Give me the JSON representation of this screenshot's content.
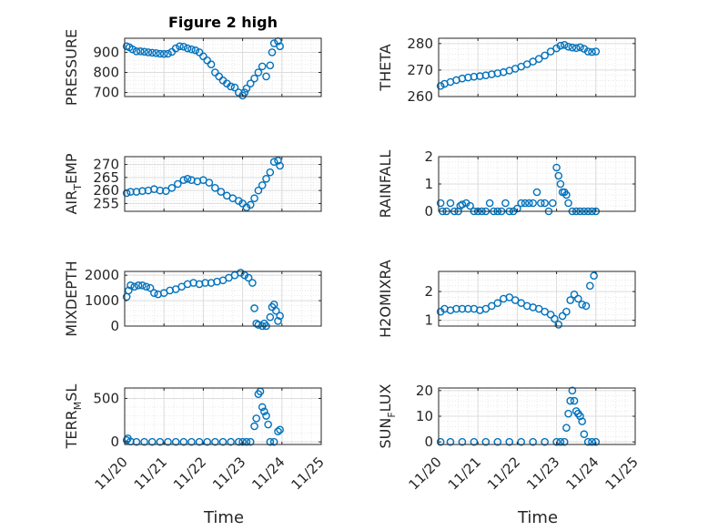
{
  "figure": {
    "title": "Figure 2 high",
    "series_color": "#0072BD"
  },
  "chart_data": [
    {
      "type": "scatter",
      "title": "Figure 2 high",
      "ylabel": "PRESSURE",
      "xlabel": "",
      "xlim": [
        0,
        5
      ],
      "ylim": [
        680,
        970
      ],
      "yticks": [
        700,
        800,
        900
      ],
      "xticks": [
        0,
        1,
        2,
        3,
        4,
        5
      ],
      "xticklabels": [
        "11/20",
        "11/21",
        "11/22",
        "11/23",
        "11/24",
        "11/25"
      ],
      "show_xticklabels": false,
      "grid": true,
      "x": [
        0.05,
        0.12,
        0.2,
        0.3,
        0.4,
        0.5,
        0.6,
        0.7,
        0.8,
        0.9,
        1.0,
        1.1,
        1.2,
        1.3,
        1.4,
        1.5,
        1.6,
        1.7,
        1.8,
        1.9,
        2.0,
        2.1,
        2.2,
        2.3,
        2.4,
        2.5,
        2.6,
        2.7,
        2.8,
        2.9,
        3.0,
        3.05,
        3.1,
        3.2,
        3.3,
        3.4,
        3.5,
        3.6,
        3.7,
        3.75,
        3.8,
        3.9,
        3.95
      ],
      "y": [
        930,
        925,
        915,
        905,
        905,
        903,
        900,
        898,
        896,
        893,
        892,
        893,
        902,
        920,
        930,
        928,
        920,
        915,
        910,
        900,
        880,
        860,
        840,
        800,
        780,
        760,
        745,
        730,
        725,
        700,
        685,
        700,
        720,
        745,
        770,
        800,
        830,
        780,
        835,
        900,
        945,
        955,
        930
      ]
    },
    {
      "type": "scatter",
      "title": "",
      "ylabel": "THETA",
      "xlabel": "",
      "xlim": [
        0,
        5
      ],
      "ylim": [
        260,
        282
      ],
      "yticks": [
        260,
        270,
        280
      ],
      "xticks": [
        0,
        1,
        2,
        3,
        4,
        5
      ],
      "xticklabels": [
        "11/20",
        "11/21",
        "11/22",
        "11/23",
        "11/24",
        "11/25"
      ],
      "show_xticklabels": false,
      "grid": true,
      "x": [
        0.05,
        0.15,
        0.3,
        0.45,
        0.6,
        0.75,
        0.9,
        1.05,
        1.2,
        1.35,
        1.5,
        1.65,
        1.8,
        1.95,
        2.1,
        2.25,
        2.4,
        2.55,
        2.7,
        2.85,
        3.0,
        3.1,
        3.2,
        3.3,
        3.4,
        3.5,
        3.6,
        3.7,
        3.8,
        3.9,
        4.0
      ],
      "y": [
        264,
        264.8,
        265.5,
        266.2,
        266.8,
        267.2,
        267.5,
        267.7,
        268,
        268.4,
        268.8,
        269.2,
        269.8,
        270.5,
        271.3,
        272.2,
        273.2,
        274.2,
        275.5,
        277,
        278.2,
        279.2,
        279.5,
        278.8,
        278.5,
        278.3,
        278.6,
        278,
        277,
        276.8,
        277
      ]
    },
    {
      "type": "scatter",
      "title": "",
      "ylabel": "AIR_TEMP",
      "xlabel": "",
      "xlim": [
        0,
        5
      ],
      "ylim": [
        252,
        273
      ],
      "yticks": [
        255,
        260,
        265,
        270
      ],
      "xticks": [
        0,
        1,
        2,
        3,
        4,
        5
      ],
      "xticklabels": [
        "11/20",
        "11/21",
        "11/22",
        "11/23",
        "11/24",
        "11/25"
      ],
      "show_xticklabels": false,
      "grid": true,
      "x": [
        0.05,
        0.15,
        0.3,
        0.45,
        0.6,
        0.75,
        0.9,
        1.05,
        1.2,
        1.35,
        1.5,
        1.6,
        1.7,
        1.85,
        2.0,
        2.15,
        2.3,
        2.45,
        2.6,
        2.75,
        2.9,
        3.0,
        3.1,
        3.2,
        3.3,
        3.4,
        3.5,
        3.6,
        3.7,
        3.8,
        3.9,
        3.95
      ],
      "y": [
        259,
        259.5,
        259.5,
        259.8,
        260,
        260.5,
        260,
        259.8,
        261,
        262.5,
        264,
        264.5,
        264,
        263.5,
        264,
        263,
        261,
        259.5,
        258,
        257,
        256,
        255,
        253.5,
        254.5,
        257,
        260,
        262,
        264.5,
        267,
        271,
        271.5,
        269.5
      ]
    },
    {
      "type": "scatter",
      "title": "",
      "ylabel": "RAINFALL",
      "xlabel": "",
      "xlim": [
        0,
        5
      ],
      "ylim": [
        0,
        2
      ],
      "yticks": [
        0,
        1,
        2
      ],
      "xticks": [
        0,
        1,
        2,
        3,
        4,
        5
      ],
      "xticklabels": [
        "11/20",
        "11/21",
        "11/22",
        "11/23",
        "11/24",
        "11/25"
      ],
      "show_xticklabels": false,
      "grid": true,
      "x": [
        0.05,
        0.1,
        0.2,
        0.3,
        0.4,
        0.5,
        0.55,
        0.6,
        0.7,
        0.8,
        0.9,
        1.0,
        1.1,
        1.2,
        1.3,
        1.4,
        1.5,
        1.6,
        1.7,
        1.8,
        1.9,
        2.0,
        2.1,
        2.2,
        2.3,
        2.4,
        2.5,
        2.6,
        2.7,
        2.8,
        2.9,
        3.0,
        3.05,
        3.1,
        3.15,
        3.2,
        3.25,
        3.3,
        3.4,
        3.5,
        3.6,
        3.7,
        3.8,
        3.9,
        4.0
      ],
      "y": [
        0.3,
        0,
        0,
        0.3,
        0,
        0,
        0.2,
        0.25,
        0.3,
        0.2,
        0,
        0,
        0,
        0,
        0.3,
        0,
        0,
        0,
        0.3,
        0,
        0,
        0.1,
        0.3,
        0.3,
        0.3,
        0.3,
        0.7,
        0.3,
        0.3,
        0,
        0.3,
        1.6,
        1.3,
        1.0,
        0.7,
        0.7,
        0.6,
        0.3,
        0,
        0,
        0,
        0,
        0,
        0,
        0
      ]
    },
    {
      "type": "scatter",
      "title": "",
      "ylabel": "MIXDEPTH",
      "xlabel": "",
      "xlim": [
        0,
        5
      ],
      "ylim": [
        0,
        2150
      ],
      "yticks": [
        0,
        1000,
        2000
      ],
      "xticks": [
        0,
        1,
        2,
        3,
        4,
        5
      ],
      "xticklabels": [
        "11/20",
        "11/21",
        "11/22",
        "11/23",
        "11/24",
        "11/25"
      ],
      "show_xticklabels": false,
      "grid": true,
      "x": [
        0.05,
        0.1,
        0.15,
        0.25,
        0.35,
        0.45,
        0.55,
        0.65,
        0.75,
        0.85,
        1.0,
        1.15,
        1.3,
        1.45,
        1.6,
        1.75,
        1.9,
        2.05,
        2.2,
        2.35,
        2.5,
        2.65,
        2.8,
        2.95,
        3.05,
        3.15,
        3.25,
        3.3,
        3.35,
        3.4,
        3.5,
        3.55,
        3.6,
        3.7,
        3.75,
        3.8,
        3.85,
        3.9,
        3.95
      ],
      "y": [
        1150,
        1400,
        1600,
        1550,
        1600,
        1600,
        1550,
        1500,
        1300,
        1250,
        1300,
        1400,
        1450,
        1550,
        1650,
        1700,
        1650,
        1700,
        1700,
        1750,
        1800,
        1900,
        2000,
        2100,
        2000,
        1900,
        1700,
        700,
        100,
        50,
        0,
        100,
        0,
        350,
        750,
        850,
        600,
        200,
        400
      ]
    },
    {
      "type": "scatter",
      "title": "",
      "ylabel": "H2OMIXRA",
      "xlabel": "",
      "xlim": [
        0,
        5
      ],
      "ylim": [
        0.8,
        2.7
      ],
      "yticks": [
        1,
        2
      ],
      "xticks": [
        0,
        1,
        2,
        3,
        4,
        5
      ],
      "xticklabels": [
        "11/20",
        "11/21",
        "11/22",
        "11/23",
        "11/24",
        "11/25"
      ],
      "show_xticklabels": false,
      "grid": true,
      "x": [
        0.05,
        0.15,
        0.3,
        0.45,
        0.6,
        0.75,
        0.9,
        1.05,
        1.2,
        1.35,
        1.5,
        1.65,
        1.8,
        1.95,
        2.1,
        2.25,
        2.4,
        2.55,
        2.7,
        2.85,
        2.95,
        3.05,
        3.15,
        3.25,
        3.35,
        3.45,
        3.55,
        3.65,
        3.75,
        3.85,
        3.95
      ],
      "y": [
        1.3,
        1.4,
        1.35,
        1.4,
        1.4,
        1.4,
        1.4,
        1.35,
        1.4,
        1.5,
        1.6,
        1.75,
        1.8,
        1.7,
        1.6,
        1.5,
        1.45,
        1.4,
        1.3,
        1.2,
        1.05,
        0.85,
        1.15,
        1.3,
        1.7,
        1.9,
        1.75,
        1.55,
        1.5,
        2.2,
        2.55
      ]
    },
    {
      "type": "scatter",
      "title": "",
      "ylabel": "TERR_MSL",
      "xlabel": "Time",
      "xlim": [
        0,
        5
      ],
      "ylim": [
        -30,
        620
      ],
      "yticks": [
        0,
        500
      ],
      "xticks": [
        0,
        1,
        2,
        3,
        4,
        5
      ],
      "xticklabels": [
        "11/20",
        "11/21",
        "11/22",
        "11/23",
        "11/24",
        "11/25"
      ],
      "show_xticklabels": true,
      "grid": true,
      "x": [
        0.05,
        0.08,
        0.15,
        0.3,
        0.5,
        0.7,
        0.9,
        1.1,
        1.3,
        1.5,
        1.7,
        1.9,
        2.1,
        2.3,
        2.5,
        2.7,
        2.9,
        3.0,
        3.1,
        3.2,
        3.3,
        3.35,
        3.4,
        3.45,
        3.5,
        3.55,
        3.6,
        3.65,
        3.7,
        3.8,
        3.9,
        3.95
      ],
      "y": [
        20,
        40,
        5,
        0,
        0,
        0,
        0,
        0,
        0,
        0,
        0,
        0,
        0,
        0,
        0,
        0,
        0,
        0,
        0,
        0,
        180,
        270,
        550,
        580,
        400,
        350,
        300,
        200,
        0,
        0,
        120,
        140
      ]
    },
    {
      "type": "scatter",
      "title": "",
      "ylabel": "SUN_FLUX",
      "xlabel": "Time",
      "xlim": [
        0,
        5
      ],
      "ylim": [
        -1,
        21
      ],
      "yticks": [
        0,
        10,
        20
      ],
      "xticks": [
        0,
        1,
        2,
        3,
        4,
        5
      ],
      "xticklabels": [
        "11/20",
        "11/21",
        "11/22",
        "11/23",
        "11/24",
        "11/25"
      ],
      "show_xticklabels": true,
      "grid": true,
      "x": [
        0.05,
        0.3,
        0.6,
        0.9,
        1.2,
        1.5,
        1.8,
        2.1,
        2.4,
        2.7,
        3.0,
        3.1,
        3.2,
        3.25,
        3.3,
        3.35,
        3.4,
        3.45,
        3.5,
        3.55,
        3.6,
        3.65,
        3.7,
        3.8,
        3.9,
        4.0
      ],
      "y": [
        0,
        0,
        0,
        0,
        0,
        0,
        0,
        0,
        0,
        0,
        0,
        0,
        0,
        5.5,
        11,
        16,
        20,
        16,
        12,
        11,
        10,
        8,
        3,
        0,
        0,
        0
      ]
    }
  ]
}
